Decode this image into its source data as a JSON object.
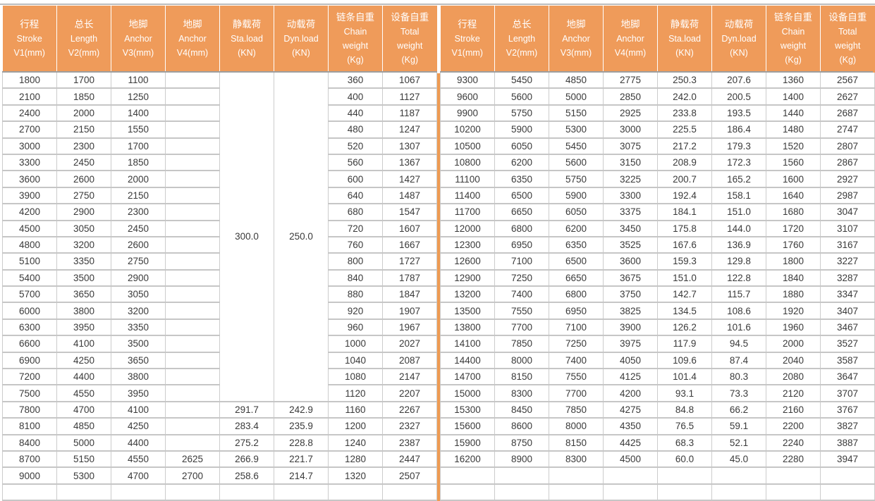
{
  "table": {
    "columns": [
      {
        "id": "stroke-v1",
        "lines": [
          "行程",
          "Stroke",
          "V1(mm)"
        ]
      },
      {
        "id": "length-v2",
        "lines": [
          "总长",
          "Length",
          "V2(mm)"
        ]
      },
      {
        "id": "anchor-v3",
        "lines": [
          "地脚",
          "Anchor",
          "V3(mm)"
        ]
      },
      {
        "id": "anchor-v4",
        "lines": [
          "地脚",
          "Anchor",
          "V4(mm)"
        ]
      },
      {
        "id": "static-load",
        "lines": [
          "静载荷",
          "Sta.load",
          "(KN)"
        ]
      },
      {
        "id": "dynamic-load",
        "lines": [
          "动载荷",
          "Dyn.load",
          "(KN)"
        ]
      },
      {
        "id": "chain-weight",
        "lines": [
          "链条自重",
          "Chain",
          "weight",
          "(Kg)"
        ]
      },
      {
        "id": "total-weight",
        "lines": [
          "设备自重",
          "Total",
          "weight",
          "(Kg)"
        ]
      }
    ],
    "halves": {
      "left": {
        "merges": [
          {
            "row": 0,
            "col": 4,
            "rowspan": 20,
            "value": "300.0"
          },
          {
            "row": 0,
            "col": 5,
            "rowspan": 20,
            "value": "250.0"
          }
        ],
        "rows": [
          [
            "1800",
            "1700",
            "1100",
            "",
            "",
            "",
            "360",
            "1067"
          ],
          [
            "2100",
            "1850",
            "1250",
            "",
            "",
            "",
            "400",
            "1127"
          ],
          [
            "2400",
            "2000",
            "1400",
            "",
            "",
            "",
            "440",
            "1187"
          ],
          [
            "2700",
            "2150",
            "1550",
            "",
            "",
            "",
            "480",
            "1247"
          ],
          [
            "3000",
            "2300",
            "1700",
            "",
            "",
            "",
            "520",
            "1307"
          ],
          [
            "3300",
            "2450",
            "1850",
            "",
            "",
            "",
            "560",
            "1367"
          ],
          [
            "3600",
            "2600",
            "2000",
            "",
            "",
            "",
            "600",
            "1427"
          ],
          [
            "3900",
            "2750",
            "2150",
            "",
            "",
            "",
            "640",
            "1487"
          ],
          [
            "4200",
            "2900",
            "2300",
            "",
            "",
            "",
            "680",
            "1547"
          ],
          [
            "4500",
            "3050",
            "2450",
            "",
            "",
            "",
            "720",
            "1607"
          ],
          [
            "4800",
            "3200",
            "2600",
            "",
            "",
            "",
            "760",
            "1667"
          ],
          [
            "5100",
            "3350",
            "2750",
            "",
            "",
            "",
            "800",
            "1727"
          ],
          [
            "5400",
            "3500",
            "2900",
            "",
            "",
            "",
            "840",
            "1787"
          ],
          [
            "5700",
            "3650",
            "3050",
            "",
            "",
            "",
            "880",
            "1847"
          ],
          [
            "6000",
            "3800",
            "3200",
            "",
            "",
            "",
            "920",
            "1907"
          ],
          [
            "6300",
            "3950",
            "3350",
            "",
            "",
            "",
            "960",
            "1967"
          ],
          [
            "6600",
            "4100",
            "3500",
            "",
            "",
            "",
            "1000",
            "2027"
          ],
          [
            "6900",
            "4250",
            "3650",
            "",
            "",
            "",
            "1040",
            "2087"
          ],
          [
            "7200",
            "4400",
            "3800",
            "",
            "",
            "",
            "1080",
            "2147"
          ],
          [
            "7500",
            "4550",
            "3950",
            "",
            "",
            "",
            "1120",
            "2207"
          ],
          [
            "7800",
            "4700",
            "4100",
            "",
            "291.7",
            "242.9",
            "1160",
            "2267"
          ],
          [
            "8100",
            "4850",
            "4250",
            "",
            "283.4",
            "235.9",
            "1200",
            "2327"
          ],
          [
            "8400",
            "5000",
            "4400",
            "",
            "275.2",
            "228.8",
            "1240",
            "2387"
          ],
          [
            "8700",
            "5150",
            "4550",
            "2625",
            "266.9",
            "221.7",
            "1280",
            "2447"
          ],
          [
            "9000",
            "5300",
            "4700",
            "2700",
            "258.6",
            "214.7",
            "1320",
            "2507"
          ]
        ]
      },
      "right": {
        "merges": [],
        "rows": [
          [
            "9300",
            "5450",
            "4850",
            "2775",
            "250.3",
            "207.6",
            "1360",
            "2567"
          ],
          [
            "9600",
            "5600",
            "5000",
            "2850",
            "242.0",
            "200.5",
            "1400",
            "2627"
          ],
          [
            "9900",
            "5750",
            "5150",
            "2925",
            "233.8",
            "193.5",
            "1440",
            "2687"
          ],
          [
            "10200",
            "5900",
            "5300",
            "3000",
            "225.5",
            "186.4",
            "1480",
            "2747"
          ],
          [
            "10500",
            "6050",
            "5450",
            "3075",
            "217.2",
            "179.3",
            "1520",
            "2807"
          ],
          [
            "10800",
            "6200",
            "5600",
            "3150",
            "208.9",
            "172.3",
            "1560",
            "2867"
          ],
          [
            "11100",
            "6350",
            "5750",
            "3225",
            "200.7",
            "165.2",
            "1600",
            "2927"
          ],
          [
            "11400",
            "6500",
            "5900",
            "3300",
            "192.4",
            "158.1",
            "1640",
            "2987"
          ],
          [
            "11700",
            "6650",
            "6050",
            "3375",
            "184.1",
            "151.0",
            "1680",
            "3047"
          ],
          [
            "12000",
            "6800",
            "6200",
            "3450",
            "175.8",
            "144.0",
            "1720",
            "3107"
          ],
          [
            "12300",
            "6950",
            "6350",
            "3525",
            "167.6",
            "136.9",
            "1760",
            "3167"
          ],
          [
            "12600",
            "7100",
            "6500",
            "3600",
            "159.3",
            "129.8",
            "1800",
            "3227"
          ],
          [
            "12900",
            "7250",
            "6650",
            "3675",
            "151.0",
            "122.8",
            "1840",
            "3287"
          ],
          [
            "13200",
            "7400",
            "6800",
            "3750",
            "142.7",
            "115.7",
            "1880",
            "3347"
          ],
          [
            "13500",
            "7550",
            "6950",
            "3825",
            "134.5",
            "108.6",
            "1920",
            "3407"
          ],
          [
            "13800",
            "7700",
            "7100",
            "3900",
            "126.2",
            "101.6",
            "1960",
            "3467"
          ],
          [
            "14100",
            "7850",
            "7250",
            "3975",
            "117.9",
            "94.5",
            "2000",
            "3527"
          ],
          [
            "14400",
            "8000",
            "7400",
            "4050",
            "109.6",
            "87.4",
            "2040",
            "3587"
          ],
          [
            "14700",
            "8150",
            "7550",
            "4125",
            "101.4",
            "80.3",
            "2080",
            "3647"
          ],
          [
            "15000",
            "8300",
            "7700",
            "4200",
            "93.1",
            "73.3",
            "2120",
            "3707"
          ],
          [
            "15300",
            "8450",
            "7850",
            "4275",
            "84.8",
            "66.2",
            "2160",
            "3767"
          ],
          [
            "15600",
            "8600",
            "8000",
            "4350",
            "76.5",
            "59.1",
            "2200",
            "3827"
          ],
          [
            "15900",
            "8750",
            "8150",
            "4425",
            "68.3",
            "52.1",
            "2240",
            "3887"
          ],
          [
            "16200",
            "8900",
            "8300",
            "4500",
            "60.0",
            "45.0",
            "2280",
            "3947"
          ],
          [
            "",
            "",
            "",
            "",
            "",
            "",
            "",
            ""
          ]
        ]
      }
    },
    "colors": {
      "header_orange": "#ef9b5a",
      "divider_orange": "#ef9b52",
      "grid_vertical": "#cccccc",
      "grid_horizontal": "#c6c6c6",
      "header_underline": "#9e9e9e",
      "cell_text": "#3a3a3a",
      "header_text": "#ffffff"
    }
  }
}
